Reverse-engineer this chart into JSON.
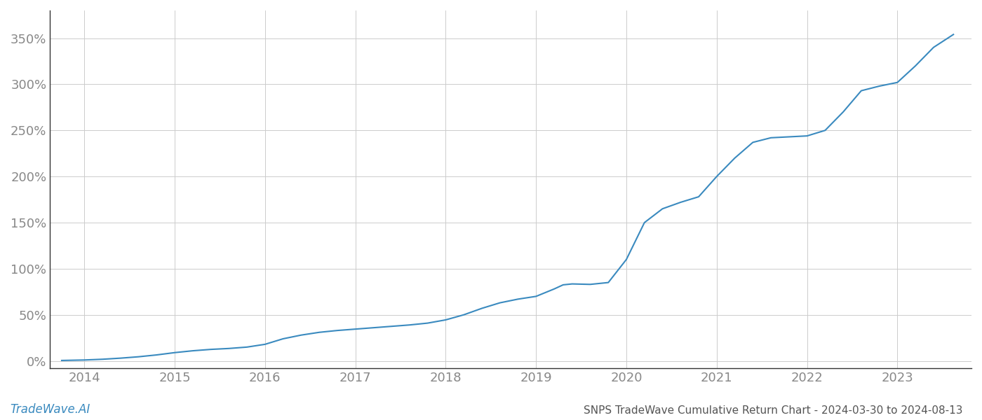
{
  "title": "SNPS TradeWave Cumulative Return Chart - 2024-03-30 to 2024-08-13",
  "watermark": "TradeWave.AI",
  "line_color": "#3a8abf",
  "background_color": "#ffffff",
  "grid_color": "#cccccc",
  "x_years": [
    2014,
    2015,
    2016,
    2017,
    2018,
    2019,
    2020,
    2021,
    2022,
    2023
  ],
  "x_data": [
    2013.75,
    2014.0,
    2014.2,
    2014.4,
    2014.6,
    2014.8,
    2015.0,
    2015.2,
    2015.4,
    2015.6,
    2015.8,
    2016.0,
    2016.2,
    2016.4,
    2016.6,
    2016.8,
    2017.0,
    2017.2,
    2017.4,
    2017.6,
    2017.8,
    2018.0,
    2018.2,
    2018.4,
    2018.6,
    2018.8,
    2019.0,
    2019.1,
    2019.2,
    2019.3,
    2019.4,
    2019.6,
    2019.8,
    2020.0,
    2020.2,
    2020.4,
    2020.6,
    2020.8,
    2021.0,
    2021.2,
    2021.4,
    2021.6,
    2021.8,
    2022.0,
    2022.2,
    2022.4,
    2022.6,
    2022.8,
    2023.0,
    2023.2,
    2023.4,
    2023.62
  ],
  "y_data": [
    0.5,
    1.0,
    1.8,
    3.0,
    4.5,
    6.5,
    9.0,
    11.0,
    12.5,
    13.5,
    15.0,
    18.0,
    24.0,
    28.0,
    31.0,
    33.0,
    34.5,
    36.0,
    37.5,
    39.0,
    41.0,
    44.5,
    50.0,
    57.0,
    63.0,
    67.0,
    70.0,
    74.0,
    78.0,
    82.5,
    83.5,
    83.0,
    85.0,
    110.0,
    150.0,
    165.0,
    172.0,
    178.0,
    200.0,
    220.0,
    237.0,
    242.0,
    243.0,
    244.0,
    250.0,
    270.0,
    293.0,
    298.0,
    302.0,
    320.0,
    340.0,
    354.0
  ],
  "yticks": [
    0,
    50,
    100,
    150,
    200,
    250,
    300,
    350
  ],
  "ylim": [
    -8,
    380
  ],
  "xlim": [
    2013.62,
    2023.82
  ],
  "title_fontsize": 11,
  "watermark_fontsize": 12,
  "axis_label_color": "#888888",
  "title_color": "#555555",
  "spine_color": "#333333"
}
